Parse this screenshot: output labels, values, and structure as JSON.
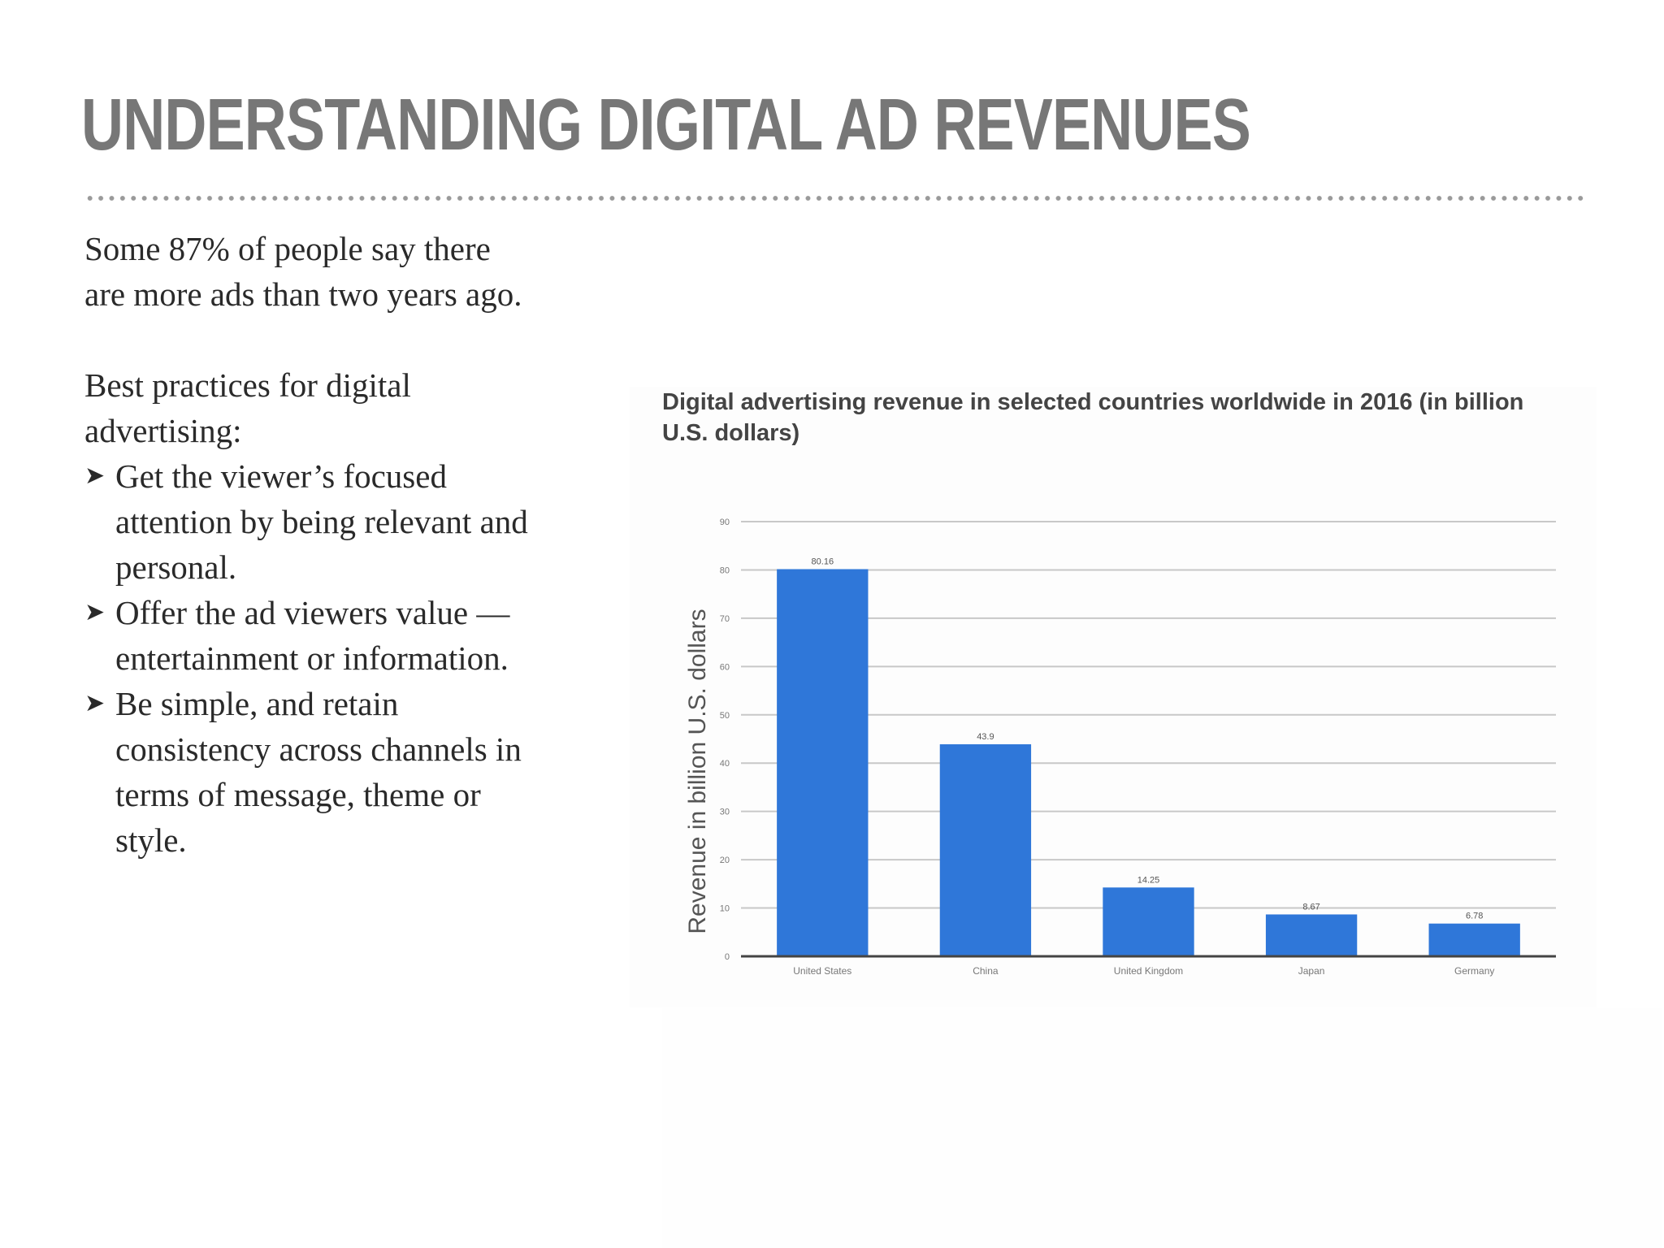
{
  "slide": {
    "title": "UNDERSTANDING DIGITAL AD REVENUES",
    "intro": "Some 87% of people say there are more ads than two years ago.",
    "practices_heading": "Best practices for digital advertising:",
    "bullets": [
      "Get the viewer’s focused attention by being relevant and personal.",
      "Offer the ad viewers value  — entertainment or information.",
      "Be simple, and retain consistency across channels in terms of message, theme or style."
    ],
    "bullet_icon": "arrowhead-icon"
  },
  "colors": {
    "title": "#777777",
    "bar": "#2f77d9",
    "grid": "#c8c8c8",
    "axis": "#444444"
  },
  "chart_data": {
    "type": "bar",
    "title": "Digital advertising revenue in selected countries worldwide in 2016 (in billion U.S. dollars)",
    "xlabel": "",
    "ylabel": "Revenue in billion U.S. dollars",
    "categories": [
      "United States",
      "China",
      "United Kingdom",
      "Japan",
      "Germany"
    ],
    "values": [
      80.16,
      43.9,
      14.25,
      8.67,
      6.78
    ],
    "value_labels": [
      "80.16",
      "43.9",
      "14.25",
      "8.67",
      "6.78"
    ],
    "ylim": [
      0,
      90
    ],
    "yticks": [
      0,
      10,
      20,
      30,
      40,
      50,
      60,
      70,
      80,
      90
    ],
    "grid": true,
    "legend": "none"
  }
}
